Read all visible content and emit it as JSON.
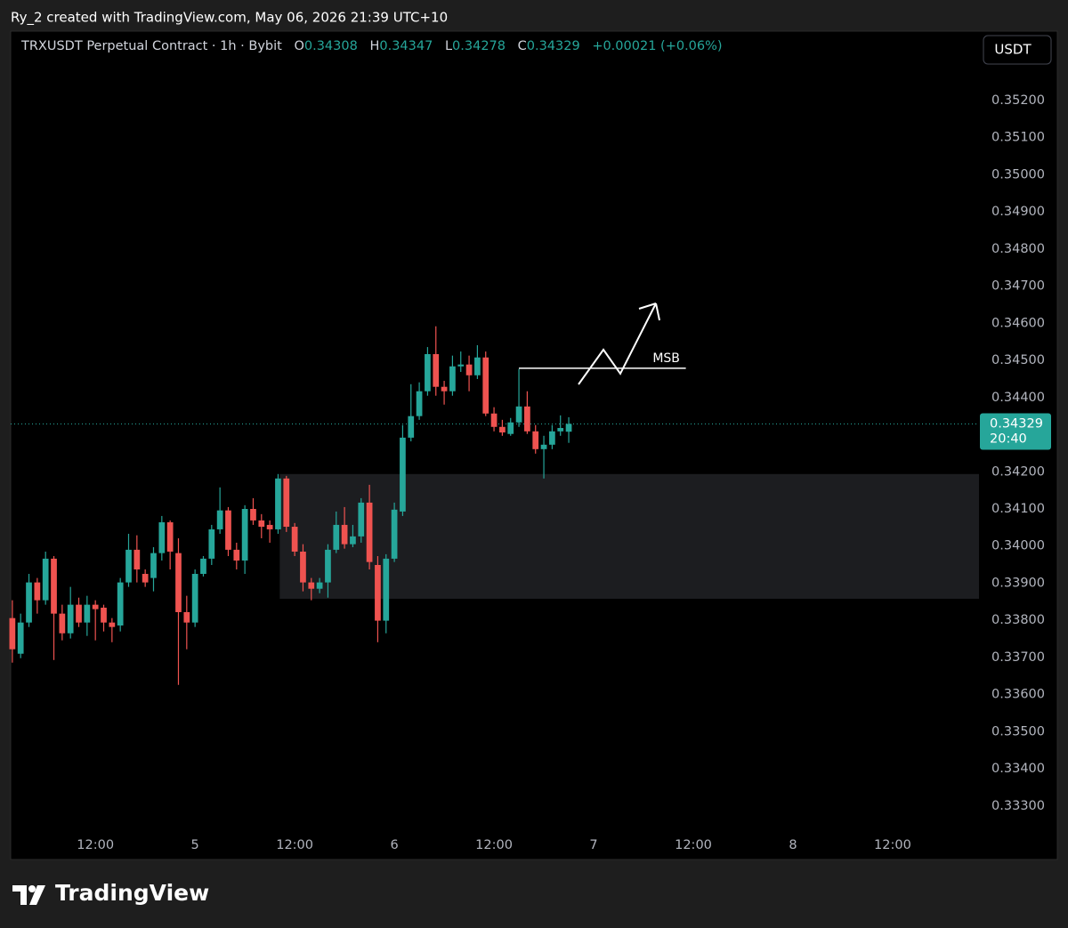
{
  "created_by": "Ry_2 created with TradingView.com, May 06, 2026 21:39 UTC+10",
  "brand": "TradingView",
  "chart_data": {
    "type": "candlestick",
    "title": "TRXUSDT Perpetual Contract · 1h · Bybit",
    "ohlc_labels": [
      "O",
      "H",
      "L",
      "C"
    ],
    "change": "+0.00021 (+0.06%)",
    "currency": "USDT",
    "countdown": "20:40",
    "up_color": "#26a69a",
    "down_color": "#ef5350",
    "grid": false,
    "x": [
      -22,
      -21,
      -20,
      -19,
      -18,
      -17,
      -16,
      -15,
      -14,
      -13,
      -12,
      -11,
      -10,
      -9,
      -8,
      -7,
      -6,
      -5,
      -4,
      -3,
      -2,
      -1,
      0,
      1,
      2,
      3,
      4,
      5,
      6,
      7,
      8,
      9,
      10,
      11,
      12,
      13,
      14,
      15,
      16,
      17,
      18,
      19,
      20,
      21,
      22,
      23,
      24,
      25,
      26,
      27,
      28,
      29,
      30,
      31,
      32,
      33,
      34,
      35,
      36,
      37,
      38,
      39,
      40,
      41,
      42,
      43,
      44,
      45
    ],
    "open": [
      0.33806,
      0.3371,
      0.33794,
      0.33902,
      0.33854,
      0.33966,
      0.33818,
      0.33765,
      0.33842,
      0.33794,
      0.33842,
      0.33834,
      0.33794,
      0.33786,
      0.33902,
      0.3399,
      0.33925,
      0.33914,
      0.33981,
      0.34064,
      0.33981,
      0.33822,
      0.33794,
      0.33925,
      0.33966,
      0.34045,
      0.34096,
      0.3399,
      0.33961,
      0.341,
      0.34069,
      0.34057,
      0.34045,
      0.34182,
      0.34052,
      0.33985,
      0.33902,
      0.33885,
      0.33902,
      0.3399,
      0.34057,
      0.34005,
      0.34026,
      0.34117,
      0.33949,
      0.33799,
      0.33966,
      0.34093,
      0.34292,
      0.3435,
      0.34417,
      0.34517,
      0.34429,
      0.34417,
      0.34484,
      0.34489,
      0.3446,
      0.34508,
      0.34357,
      0.34321,
      0.34302,
      0.34333,
      0.34376,
      0.34309,
      0.34261,
      0.34273,
      0.34309,
      0.34308
    ],
    "high": [
      0.33854,
      0.33818,
      0.33925,
      0.33914,
      0.33985,
      0.33973,
      0.33842,
      0.3389,
      0.33861,
      0.33866,
      0.33854,
      0.33842,
      0.33806,
      0.33914,
      0.34033,
      0.34029,
      0.33937,
      0.33997,
      0.34081,
      0.34069,
      0.34021,
      0.33866,
      0.33937,
      0.33973,
      0.34057,
      0.34158,
      0.34105,
      0.34009,
      0.3411,
      0.34129,
      0.34086,
      0.34069,
      0.34194,
      0.34189,
      0.34062,
      0.34005,
      0.33914,
      0.33914,
      0.34005,
      0.34093,
      0.34105,
      0.34057,
      0.34129,
      0.34165,
      0.33973,
      0.33978,
      0.34117,
      0.34326,
      0.34436,
      0.34441,
      0.34536,
      0.34592,
      0.34445,
      0.34513,
      0.34524,
      0.34513,
      0.34541,
      0.34524,
      0.34374,
      0.3434,
      0.34345,
      0.34477,
      0.34417,
      0.34326,
      0.34297,
      0.34326,
      0.34352,
      0.34347
    ],
    "low": [
      0.33686,
      0.33698,
      0.33782,
      0.33818,
      0.33842,
      0.33693,
      0.33746,
      0.33751,
      0.33782,
      0.33758,
      0.33746,
      0.3377,
      0.33741,
      0.3377,
      0.3389,
      0.33902,
      0.3389,
      0.33878,
      0.33961,
      0.33937,
      0.33626,
      0.33722,
      0.33782,
      0.33918,
      0.33949,
      0.34033,
      0.33973,
      0.33937,
      0.33925,
      0.34057,
      0.34021,
      0.34009,
      0.34033,
      0.34038,
      0.33973,
      0.33878,
      0.33854,
      0.33873,
      0.33861,
      0.33981,
      0.33993,
      0.33997,
      0.34009,
      0.33937,
      0.33741,
      0.33765,
      0.33957,
      0.34081,
      0.34282,
      0.3434,
      0.34405,
      0.34405,
      0.34381,
      0.34405,
      0.34469,
      0.34417,
      0.3445,
      0.3435,
      0.34309,
      0.34297,
      0.34297,
      0.34321,
      0.34302,
      0.34249,
      0.34182,
      0.34261,
      0.34297,
      0.34278
    ],
    "close": [
      0.33722,
      0.33794,
      0.33902,
      0.33854,
      0.33966,
      0.33818,
      0.33765,
      0.33842,
      0.33794,
      0.33842,
      0.3383,
      0.33794,
      0.33782,
      0.33902,
      0.3399,
      0.33937,
      0.33902,
      0.33981,
      0.34064,
      0.33985,
      0.33822,
      0.33794,
      0.33925,
      0.33966,
      0.34045,
      0.34096,
      0.3399,
      0.33961,
      0.341,
      0.34069,
      0.34052,
      0.34045,
      0.34182,
      0.34052,
      0.33985,
      0.33902,
      0.33885,
      0.33902,
      0.3399,
      0.34057,
      0.34005,
      0.34026,
      0.34117,
      0.33957,
      0.33799,
      0.33966,
      0.34098,
      0.34292,
      0.3435,
      0.34417,
      0.34517,
      0.34429,
      0.34417,
      0.34484,
      0.34489,
      0.3446,
      0.34508,
      0.34357,
      0.34321,
      0.34306,
      0.34333,
      0.34376,
      0.34309,
      0.34261,
      0.34273,
      0.34309,
      0.34318,
      0.34329
    ],
    "xlim": [
      -22.2,
      94.4
    ],
    "xticks": [
      {
        "value": -12,
        "label": "12:00"
      },
      {
        "value": 0,
        "label": "5"
      },
      {
        "value": 12,
        "label": "12:00"
      },
      {
        "value": 24,
        "label": "6"
      },
      {
        "value": 36,
        "label": "12:00"
      },
      {
        "value": 48,
        "label": "7"
      },
      {
        "value": 60,
        "label": "12:00"
      },
      {
        "value": 72,
        "label": "8"
      },
      {
        "value": 84,
        "label": "12:00"
      }
    ],
    "ylim": [
      0.3323,
      0.35387
    ],
    "yticks": [
      {
        "value": 0.352,
        "label": "0.35200"
      },
      {
        "value": 0.351,
        "label": "0.35100"
      },
      {
        "value": 0.35,
        "label": "0.35000"
      },
      {
        "value": 0.349,
        "label": "0.34900"
      },
      {
        "value": 0.348,
        "label": "0.34800"
      },
      {
        "value": 0.347,
        "label": "0.34700"
      },
      {
        "value": 0.346,
        "label": "0.34600"
      },
      {
        "value": 0.345,
        "label": "0.34500"
      },
      {
        "value": 0.344,
        "label": "0.34400"
      },
      {
        "value": 0.343,
        "label": "0.34300"
      },
      {
        "value": 0.342,
        "label": "0.34200"
      },
      {
        "value": 0.341,
        "label": "0.34100"
      },
      {
        "value": 0.34,
        "label": "0.34000"
      },
      {
        "value": 0.339,
        "label": "0.33900"
      },
      {
        "value": 0.338,
        "label": "0.33800"
      },
      {
        "value": 0.337,
        "label": "0.33700"
      },
      {
        "value": 0.336,
        "label": "0.33600"
      },
      {
        "value": 0.335,
        "label": "0.33500"
      },
      {
        "value": 0.334,
        "label": "0.33400"
      },
      {
        "value": 0.333,
        "label": "0.33300"
      }
    ],
    "zone": {
      "y": [
        0.33858,
        0.34194
      ],
      "x": [
        10.2,
        94.4
      ],
      "color": "#1c1d20"
    },
    "msb_line": {
      "label": "MSB",
      "y": 0.34479,
      "x": [
        39,
        59.1
      ]
    }
  }
}
